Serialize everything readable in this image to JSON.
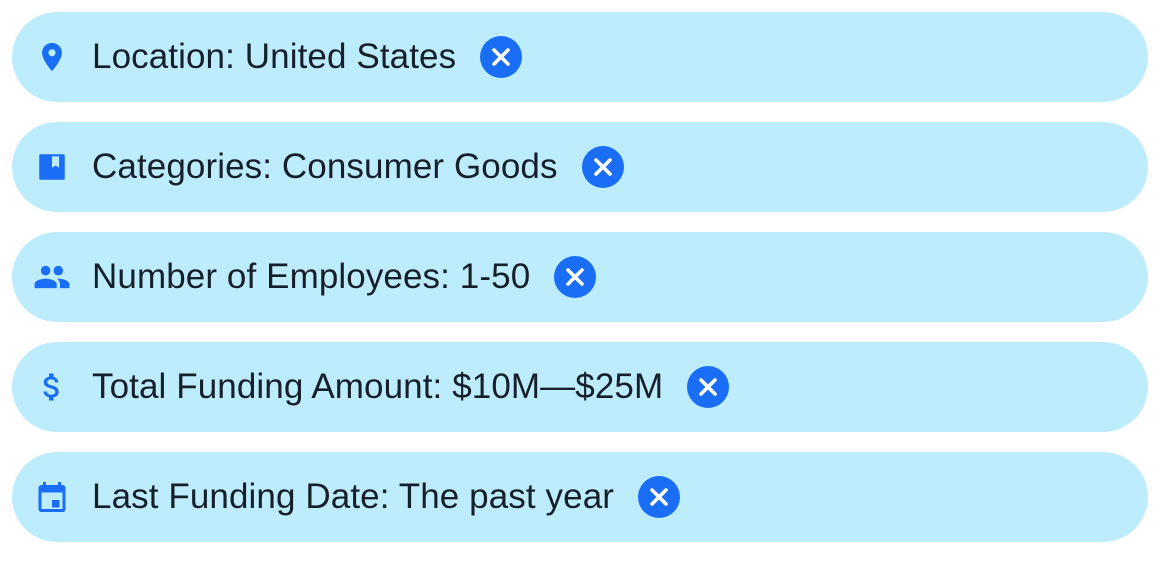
{
  "colors": {
    "chip_background": "#bdecfc",
    "accent": "#1a6ef5",
    "text": "#17202a"
  },
  "filters": [
    {
      "icon": "location-pin-icon",
      "label": "Location: United States"
    },
    {
      "icon": "bookmark-book-icon",
      "label": "Categories: Consumer Goods"
    },
    {
      "icon": "people-icon",
      "label": "Number of Employees: 1-50"
    },
    {
      "icon": "dollar-icon",
      "label": "Total Funding Amount: $10M—$25M"
    },
    {
      "icon": "calendar-icon",
      "label": "Last Funding Date: The past year"
    }
  ]
}
